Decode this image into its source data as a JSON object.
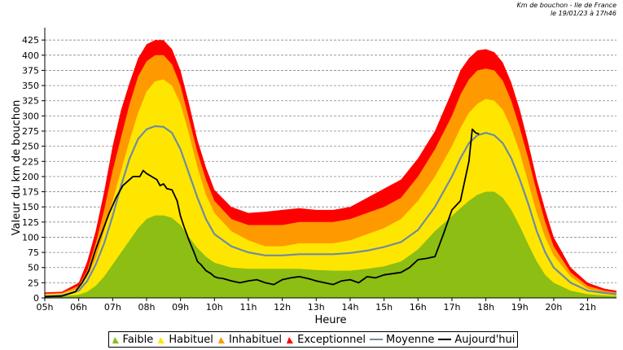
{
  "header": {
    "line1": "Km de bouchon - Ile de France",
    "line2": "le 19/01/23 à 17h46"
  },
  "colors": {
    "faible": "#8cbe14",
    "habituel": "#ffe600",
    "inhabituel": "#ff9900",
    "exceptionnel": "#ff0000",
    "moyenne": "#6e8ca0",
    "aujourdhui": "#000000",
    "grid": "#888888"
  },
  "chart_data": {
    "type": "area",
    "title": "",
    "xlabel": "Heure",
    "ylabel": "Valeur du  km de bouchon",
    "xlim": [
      5,
      21.85
    ],
    "ylim": [
      0,
      440
    ],
    "x_ticks": [
      5,
      6,
      7,
      8,
      9,
      10,
      11,
      12,
      13,
      14,
      15,
      16,
      17,
      18,
      19,
      20,
      21
    ],
    "x_tick_labels": [
      "05h",
      "06h",
      "07h",
      "08h",
      "09h",
      "10h",
      "11h",
      "12h",
      "13h",
      "14h",
      "15h",
      "16h",
      "17h",
      "18h",
      "19h",
      "20h",
      "21h"
    ],
    "y_ticks": [
      0,
      25,
      50,
      75,
      100,
      125,
      150,
      175,
      200,
      225,
      250,
      275,
      300,
      325,
      350,
      375,
      400,
      425
    ],
    "y_tick_labels": [
      "0",
      "25",
      "50",
      "75",
      "100",
      "125",
      "150",
      "175",
      "200",
      "225",
      "250",
      "275",
      "300",
      "325",
      "350",
      "375",
      "400",
      "425"
    ],
    "legend": [
      "Faible",
      "Habituel",
      "Inhabituel",
      "Exceptionnel",
      "Moyenne",
      "Aujourd'hui"
    ],
    "legend_position": "bottom",
    "x": [
      5,
      5.5,
      6,
      6.25,
      6.5,
      6.75,
      7,
      7.25,
      7.5,
      7.75,
      8,
      8.25,
      8.5,
      8.75,
      9,
      9.25,
      9.5,
      9.75,
      10,
      10.5,
      11,
      11.5,
      12,
      12.5,
      13,
      13.5,
      14,
      14.5,
      15,
      15.5,
      16,
      16.5,
      17,
      17.25,
      17.5,
      17.75,
      18,
      18.25,
      18.5,
      18.75,
      19,
      19.25,
      19.5,
      19.75,
      20,
      20.5,
      21,
      21.5,
      21.85
    ],
    "series": [
      {
        "name": "Faible",
        "values": [
          2,
          3,
          5,
          10,
          20,
          35,
          55,
          75,
          95,
          115,
          130,
          136,
          136,
          132,
          120,
          100,
          82,
          68,
          58,
          50,
          48,
          48,
          48,
          48,
          46,
          45,
          45,
          48,
          52,
          60,
          80,
          110,
          135,
          148,
          160,
          170,
          175,
          175,
          165,
          145,
          118,
          88,
          60,
          38,
          25,
          12,
          6,
          4,
          3
        ]
      },
      {
        "name": "Habituel",
        "values": [
          6,
          7,
          15,
          35,
          65,
          110,
          160,
          210,
          260,
          305,
          340,
          357,
          360,
          350,
          320,
          270,
          215,
          170,
          140,
          110,
          95,
          85,
          85,
          90,
          90,
          90,
          95,
          105,
          115,
          130,
          160,
          200,
          250,
          280,
          305,
          320,
          328,
          325,
          310,
          280,
          240,
          190,
          140,
          100,
          70,
          35,
          15,
          9,
          7
        ]
      },
      {
        "name": "Inhabituel",
        "values": [
          7,
          8,
          20,
          45,
          90,
          145,
          210,
          265,
          320,
          365,
          390,
          400,
          400,
          385,
          350,
          295,
          240,
          195,
          160,
          130,
          120,
          120,
          120,
          125,
          125,
          125,
          130,
          140,
          150,
          165,
          200,
          245,
          300,
          335,
          360,
          375,
          378,
          375,
          358,
          325,
          280,
          230,
          175,
          125,
          85,
          42,
          20,
          12,
          9
        ]
      },
      {
        "name": "Exceptionnel",
        "values": [
          9,
          10,
          25,
          60,
          110,
          175,
          250,
          310,
          355,
          395,
          418,
          425,
          425,
          410,
          375,
          320,
          260,
          215,
          178,
          150,
          140,
          142,
          145,
          148,
          145,
          145,
          150,
          165,
          180,
          195,
          230,
          275,
          340,
          375,
          395,
          408,
          410,
          405,
          388,
          355,
          310,
          255,
          195,
          145,
          100,
          50,
          25,
          15,
          12
        ]
      },
      {
        "name": "Moyenne",
        "values": [
          3,
          4,
          12,
          28,
          55,
          90,
          135,
          185,
          230,
          262,
          278,
          283,
          282,
          272,
          245,
          205,
          165,
          130,
          105,
          85,
          75,
          70,
          70,
          72,
          72,
          72,
          74,
          78,
          84,
          92,
          112,
          150,
          200,
          230,
          255,
          268,
          272,
          268,
          255,
          230,
          195,
          155,
          110,
          75,
          50,
          25,
          12,
          8,
          6
        ]
      },
      {
        "name": "Aujourd'hui",
        "x": [
          5,
          5.5,
          5.9,
          6.1,
          6.3,
          6.5,
          6.7,
          6.9,
          7.1,
          7.3,
          7.5,
          7.6,
          7.8,
          7.9,
          8.0,
          8.15,
          8.3,
          8.4,
          8.5,
          8.6,
          8.75,
          8.9,
          9.0,
          9.1,
          9.25,
          9.4,
          9.5,
          9.6,
          9.75,
          9.9,
          10.0,
          10.1,
          10.25,
          10.5,
          10.75,
          11.0,
          11.25,
          11.5,
          11.75,
          12.0,
          12.25,
          12.5,
          12.75,
          13.0,
          13.25,
          13.5,
          13.75,
          14.0,
          14.25,
          14.5,
          14.75,
          15.0,
          15.25,
          15.5,
          15.75,
          16.0,
          16.25,
          16.5,
          16.75,
          17.0,
          17.25,
          17.5,
          17.6
        ],
        "values": [
          2,
          3,
          10,
          25,
          45,
          80,
          110,
          140,
          165,
          185,
          195,
          200,
          200,
          210,
          205,
          200,
          195,
          185,
          188,
          180,
          178,
          160,
          135,
          118,
          95,
          75,
          60,
          55,
          45,
          40,
          35,
          33,
          32,
          28,
          25,
          28,
          30,
          25,
          22,
          30,
          33,
          35,
          32,
          28,
          25,
          22,
          28,
          30,
          25,
          35,
          33,
          38,
          40,
          42,
          50,
          63,
          65,
          68,
          105,
          145,
          160,
          225,
          278
        ]
      }
    ]
  },
  "aujourdhui_extra_points": {
    "x": [
      17.7,
      17.8
    ],
    "values": [
      272,
      270
    ]
  }
}
